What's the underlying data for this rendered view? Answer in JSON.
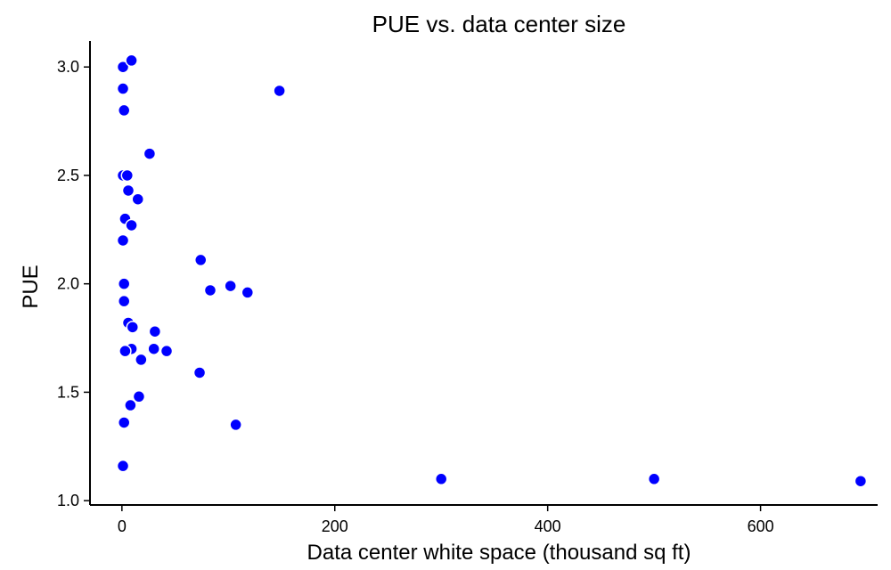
{
  "chart_data": {
    "type": "scatter",
    "title": "PUE vs. data center size",
    "xlabel": "Data center white space (thousand sq ft)",
    "ylabel": "PUE",
    "xlim": [
      -30,
      710
    ],
    "ylim": [
      0.98,
      3.12
    ],
    "x_ticks": [
      0,
      200,
      400,
      600
    ],
    "y_ticks": [
      1.0,
      1.5,
      2.0,
      2.5,
      3.0
    ],
    "x_tick_labels": [
      "0",
      "200",
      "400",
      "600"
    ],
    "y_tick_labels": [
      "1.0",
      "1.5",
      "2.0",
      "2.5",
      "3.0"
    ],
    "grid": false,
    "marker_color": "#0000ff",
    "series": [
      {
        "points": [
          {
            "x": 1,
            "y": 3.0
          },
          {
            "x": 9,
            "y": 3.03
          },
          {
            "x": 1,
            "y": 2.9
          },
          {
            "x": 2,
            "y": 2.8
          },
          {
            "x": 148,
            "y": 2.89
          },
          {
            "x": 26,
            "y": 2.6
          },
          {
            "x": 1,
            "y": 2.5
          },
          {
            "x": 5,
            "y": 2.5
          },
          {
            "x": 6,
            "y": 2.43
          },
          {
            "x": 15,
            "y": 2.39
          },
          {
            "x": 3,
            "y": 2.3
          },
          {
            "x": 9,
            "y": 2.27
          },
          {
            "x": 1,
            "y": 2.2
          },
          {
            "x": 74,
            "y": 2.11
          },
          {
            "x": 2,
            "y": 2.0
          },
          {
            "x": 83,
            "y": 1.97
          },
          {
            "x": 102,
            "y": 1.99
          },
          {
            "x": 118,
            "y": 1.96
          },
          {
            "x": 2,
            "y": 1.92
          },
          {
            "x": 6,
            "y": 1.82
          },
          {
            "x": 10,
            "y": 1.8
          },
          {
            "x": 31,
            "y": 1.78
          },
          {
            "x": 9,
            "y": 1.7
          },
          {
            "x": 3,
            "y": 1.69
          },
          {
            "x": 30,
            "y": 1.7
          },
          {
            "x": 42,
            "y": 1.69
          },
          {
            "x": 18,
            "y": 1.65
          },
          {
            "x": 73,
            "y": 1.59
          },
          {
            "x": 16,
            "y": 1.48
          },
          {
            "x": 8,
            "y": 1.44
          },
          {
            "x": 2,
            "y": 1.36
          },
          {
            "x": 107,
            "y": 1.35
          },
          {
            "x": 1,
            "y": 1.16
          },
          {
            "x": 300,
            "y": 1.1
          },
          {
            "x": 500,
            "y": 1.1
          },
          {
            "x": 694,
            "y": 1.09
          }
        ]
      }
    ]
  }
}
